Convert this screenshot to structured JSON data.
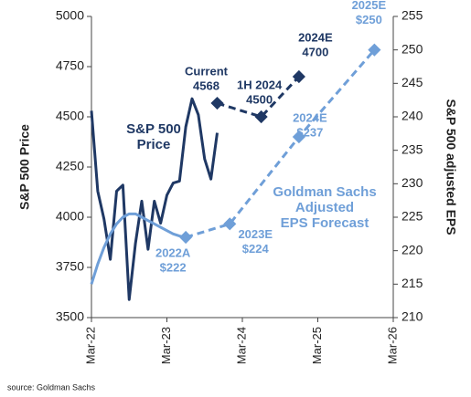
{
  "chart_data": {
    "type": "line",
    "ylabel": "S&P 500 Price",
    "y2label": "S&P 500 adjusted EPS",
    "source": "source: Goldman Sachs",
    "xlim": [
      "2022-03",
      "2026-03"
    ],
    "xticks": [
      {
        "value": "2022-03",
        "label": "Mar-22"
      },
      {
        "value": "2023-03",
        "label": "Mar-23"
      },
      {
        "value": "2024-03",
        "label": "Mar-24"
      },
      {
        "value": "2025-03",
        "label": "Mar-25"
      },
      {
        "value": "2026-03",
        "label": "Mar-26"
      }
    ],
    "ylim": [
      3500,
      5000
    ],
    "yticks": [
      3500,
      3750,
      4000,
      4250,
      4500,
      4750,
      5000
    ],
    "y2lim": [
      210,
      255
    ],
    "y2ticks": [
      210,
      215,
      220,
      225,
      230,
      235,
      240,
      245,
      250,
      255
    ],
    "annotations": [
      {
        "text": [
          "S&P 500",
          "Price"
        ],
        "color": "#1f3864"
      },
      {
        "text": [
          "Goldman Sachs",
          "Adjusted",
          "EPS Forecast"
        ],
        "color": "#6f9fd8"
      }
    ],
    "series": [
      {
        "axis": "y",
        "color": "#1f3864",
        "style": "solid",
        "x": [
          "2022-03",
          "2022-04",
          "2022-05",
          "2022-06",
          "2022-07",
          "2022-08",
          "2022-09",
          "2022-10",
          "2022-11",
          "2022-12",
          "2023-01",
          "2023-02",
          "2023-03",
          "2023-04",
          "2023-05",
          "2023-06",
          "2023-07",
          "2023-08",
          "2023-09",
          "2023-10",
          "2023-11"
        ],
        "values": [
          4530,
          4130,
          3990,
          3790,
          4130,
          4160,
          3590,
          3870,
          4080,
          3840,
          4080,
          3970,
          4110,
          4170,
          4180,
          4450,
          4590,
          4510,
          4290,
          4190,
          4420
        ]
      },
      {
        "axis": "y",
        "color": "#1f3864",
        "style": "dashed",
        "x": [
          "2023-11",
          "2024-06",
          "2024-12"
        ],
        "point_labels": [
          "Current",
          "1H 2024",
          "2024E"
        ],
        "values": [
          4568,
          4500,
          4700
        ],
        "value_labels": [
          "4568",
          "4500",
          "4700"
        ]
      },
      {
        "axis": "y2",
        "color": "#6f9fd8",
        "style": "solid",
        "x": [
          "2022-03",
          "2022-04",
          "2022-05",
          "2022-06",
          "2022-07",
          "2022-08",
          "2022-09",
          "2022-10",
          "2022-11",
          "2022-12",
          "2023-01",
          "2023-02",
          "2023-03",
          "2023-04",
          "2023-05",
          "2023-06"
        ],
        "values": [
          215,
          218,
          220.5,
          222.5,
          224,
          225,
          225.5,
          225.5,
          225,
          224.5,
          224,
          223.5,
          223,
          222.5,
          222.2,
          222
        ]
      },
      {
        "axis": "y2",
        "color": "#6f9fd8",
        "style": "dashed",
        "x": [
          "2023-06",
          "2024-01",
          "2024-12",
          "2025-12"
        ],
        "point_labels": [
          "2022A",
          "2023E",
          "2024E",
          "2025E"
        ],
        "values": [
          222,
          224,
          237,
          250
        ],
        "value_labels": [
          "$222",
          "$224",
          "$237",
          "$250"
        ]
      }
    ]
  }
}
